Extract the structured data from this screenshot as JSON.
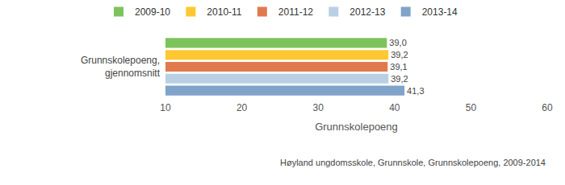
{
  "chart_data": {
    "type": "bar",
    "orientation": "horizontal",
    "categories": [
      "Grunnskolepoeng, gjennomsnitt"
    ],
    "series": [
      {
        "name": "2009-10",
        "color": "#7cc35c",
        "values": [
          39.0
        ],
        "value_labels": [
          "39,0"
        ]
      },
      {
        "name": "2010-11",
        "color": "#fdc830",
        "values": [
          39.2
        ],
        "value_labels": [
          "39,2"
        ]
      },
      {
        "name": "2011-12",
        "color": "#e07a4e",
        "values": [
          39.1
        ],
        "value_labels": [
          "39,1"
        ]
      },
      {
        "name": "2012-13",
        "color": "#b9cfe4",
        "values": [
          39.2
        ],
        "value_labels": [
          "39,2"
        ]
      },
      {
        "name": "2013-14",
        "color": "#7fa3c9",
        "values": [
          41.3
        ],
        "value_labels": [
          "41,3"
        ]
      }
    ],
    "x_label": "Grunnskolepoeng",
    "xlim": [
      10,
      60
    ],
    "xticks": [
      10,
      20,
      30,
      40,
      50,
      60
    ],
    "grid": false,
    "legend": "top",
    "data_labels": true,
    "annotations": [
      "Høyland ungdomsskole, Grunnskole, Grunnskolepoeng, 2009-2014"
    ]
  }
}
